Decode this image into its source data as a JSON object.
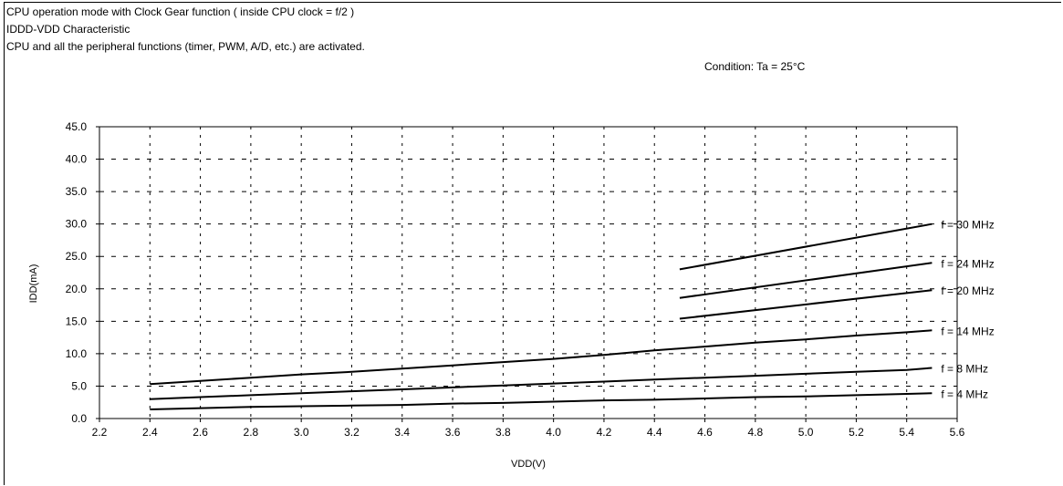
{
  "header": {
    "line1": "CPU operation mode with Clock Gear function ( inside CPU clock = f/2 )",
    "line2": "IDDD-VDD Characteristic",
    "line3": "CPU and all the peripheral functions (timer, PWM, A/D, etc.) are activated."
  },
  "condition": "Condition: Ta = 25°C",
  "chart_data": {
    "type": "line",
    "xlabel": "VDD(V)",
    "ylabel": "IDD(mA)",
    "xlim": [
      2.2,
      5.6
    ],
    "ylim": [
      0,
      45
    ],
    "x_ticks": [
      "2.2",
      "2.4",
      "2.6",
      "2.8",
      "3.0",
      "3.2",
      "3.4",
      "3.6",
      "3.8",
      "4.0",
      "4.2",
      "4.4",
      "4.6",
      "4.8",
      "5.0",
      "5.2",
      "5.4",
      "5.6"
    ],
    "y_ticks": [
      "0.0",
      "5.0",
      "10.0",
      "15.0",
      "20.0",
      "25.0",
      "30.0",
      "35.0",
      "40.0",
      "45.0"
    ],
    "grid": true,
    "series": [
      {
        "name": "f = 30 MHz",
        "x": [
          4.5,
          5.5
        ],
        "y": [
          23.0,
          30.0
        ]
      },
      {
        "name": "f = 24 MHz",
        "x": [
          4.5,
          5.5
        ],
        "y": [
          18.6,
          24.0
        ]
      },
      {
        "name": "f = 20 MHz",
        "x": [
          4.5,
          5.5
        ],
        "y": [
          15.4,
          19.8
        ]
      },
      {
        "name": "f = 14 MHz",
        "x": [
          2.4,
          2.6,
          2.8,
          3.0,
          3.2,
          3.4,
          3.6,
          3.8,
          4.0,
          4.2,
          4.4,
          4.6,
          4.8,
          5.0,
          5.2,
          5.4,
          5.5
        ],
        "y": [
          5.3,
          5.8,
          6.3,
          6.8,
          7.2,
          7.7,
          8.2,
          8.7,
          9.2,
          9.8,
          10.5,
          11.1,
          11.7,
          12.2,
          12.8,
          13.3,
          13.6
        ]
      },
      {
        "name": "f = 8 MHz",
        "x": [
          2.4,
          2.6,
          2.8,
          3.0,
          3.2,
          3.4,
          3.6,
          3.8,
          4.0,
          4.2,
          4.4,
          4.6,
          4.8,
          5.0,
          5.2,
          5.4,
          5.5
        ],
        "y": [
          3.0,
          3.3,
          3.6,
          3.9,
          4.2,
          4.5,
          4.8,
          5.1,
          5.4,
          5.7,
          6.0,
          6.3,
          6.6,
          6.9,
          7.2,
          7.5,
          7.8
        ]
      },
      {
        "name": "f = 4 MHz",
        "x": [
          2.4,
          2.6,
          2.8,
          3.0,
          3.2,
          3.4,
          3.6,
          3.8,
          4.0,
          4.2,
          4.4,
          4.6,
          4.8,
          5.0,
          5.2,
          5.4,
          5.5
        ],
        "y": [
          1.4,
          1.6,
          1.8,
          1.9,
          2.0,
          2.1,
          2.3,
          2.4,
          2.6,
          2.8,
          2.9,
          3.1,
          3.3,
          3.4,
          3.6,
          3.8,
          3.9
        ]
      }
    ]
  }
}
